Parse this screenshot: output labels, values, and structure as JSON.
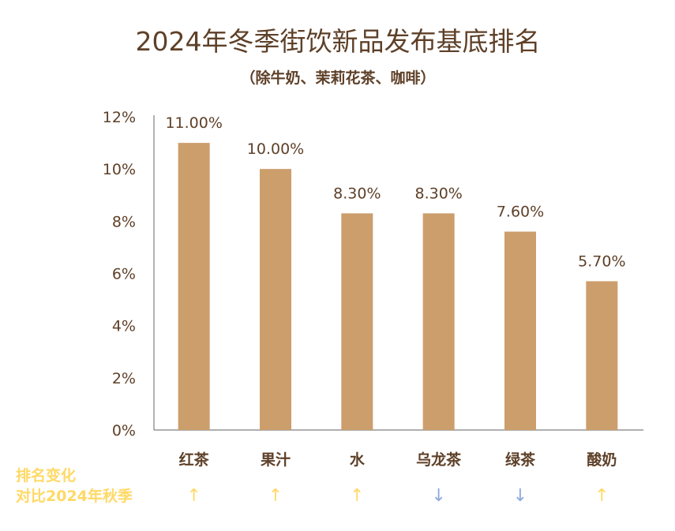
{
  "chart_data": {
    "type": "bar",
    "title": "2024年冬季街饮新品发布基底排名",
    "subtitle": "（除牛奶、茉莉花茶、咖啡）",
    "categories": [
      "红茶",
      "果汁",
      "水",
      "乌龙茶",
      "绿茶",
      "酸奶"
    ],
    "values": [
      11.0,
      10.0,
      8.3,
      8.3,
      7.6,
      5.7
    ],
    "data_labels": [
      "11.00%",
      "10.00%",
      "8.30%",
      "8.30%",
      "7.60%",
      "5.70%"
    ],
    "ylim": [
      0,
      12
    ],
    "yticks": [
      "0%",
      "2%",
      "4%",
      "6%",
      "8%",
      "10%",
      "12%"
    ],
    "grid": false,
    "bar_color": "#cc9e6c",
    "rank_change": {
      "label_line1": "排名变化",
      "label_line2": "对比2024年秋季",
      "arrows": [
        "↑",
        "↑",
        "↑",
        "↓",
        "↓",
        "↑"
      ],
      "up_color": "#ffd966",
      "down_color": "#8fa9dc"
    }
  }
}
